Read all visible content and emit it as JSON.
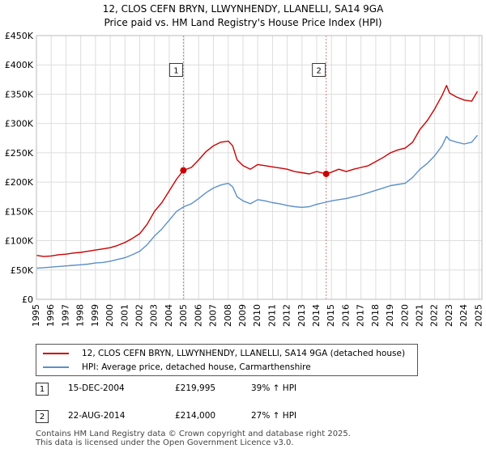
{
  "header": {
    "title_line1": "12, CLOS CEFN BRYN, LLWYNHENDY, LLANELLI, SA14 9GA",
    "title_line2": "Price paid vs. HM Land Registry's House Price Index (HPI)"
  },
  "chart_data": {
    "type": "line",
    "xlim": [
      1995,
      2025.2
    ],
    "ylim": [
      0,
      450000
    ],
    "yticks": [
      0,
      50000,
      100000,
      150000,
      200000,
      250000,
      300000,
      350000,
      400000,
      450000
    ],
    "ytick_labels": [
      "£0",
      "£50K",
      "£100K",
      "£150K",
      "£200K",
      "£250K",
      "£300K",
      "£350K",
      "£400K",
      "£450K"
    ],
    "xticks": [
      1995,
      1996,
      1997,
      1998,
      1999,
      2000,
      2001,
      2002,
      2003,
      2004,
      2005,
      2006,
      2007,
      2008,
      2009,
      2010,
      2011,
      2012,
      2013,
      2014,
      2015,
      2016,
      2017,
      2018,
      2019,
      2020,
      2021,
      2022,
      2023,
      2024,
      2025
    ],
    "grid": true,
    "series": [
      {
        "name": "12, CLOS CEFN BRYN, LLWYNHENDY, LLANELLI, SA14 9GA (detached house)",
        "color": "#cc0000",
        "x": [
          1995.0,
          1995.5,
          1996.0,
          1996.5,
          1997.0,
          1997.5,
          1998.0,
          1998.5,
          1999.0,
          1999.5,
          2000.0,
          2000.5,
          2001.0,
          2001.5,
          2002.0,
          2002.5,
          2003.0,
          2003.5,
          2004.0,
          2004.5,
          2004.96,
          2005.5,
          2006.0,
          2006.5,
          2007.0,
          2007.5,
          2008.0,
          2008.3,
          2008.6,
          2009.0,
          2009.5,
          2010.0,
          2010.5,
          2011.0,
          2011.5,
          2012.0,
          2012.5,
          2013.0,
          2013.5,
          2014.0,
          2014.64,
          2015.0,
          2015.5,
          2016.0,
          2016.5,
          2017.0,
          2017.5,
          2018.0,
          2018.5,
          2019.0,
          2019.5,
          2020.0,
          2020.5,
          2021.0,
          2021.5,
          2022.0,
          2022.5,
          2022.8,
          2023.0,
          2023.5,
          2024.0,
          2024.5,
          2024.9
        ],
        "values": [
          75000,
          73000,
          74000,
          76000,
          77000,
          79000,
          80000,
          82000,
          84000,
          86000,
          88000,
          92000,
          97000,
          104000,
          112000,
          128000,
          150000,
          165000,
          185000,
          205000,
          219995,
          225000,
          238000,
          252000,
          262000,
          268000,
          270000,
          262000,
          238000,
          228000,
          222000,
          230000,
          228000,
          226000,
          224000,
          222000,
          218000,
          216000,
          214000,
          218000,
          214000,
          217000,
          222000,
          218000,
          222000,
          225000,
          228000,
          235000,
          242000,
          250000,
          255000,
          258000,
          268000,
          290000,
          305000,
          325000,
          348000,
          365000,
          352000,
          345000,
          340000,
          338000,
          355000
        ]
      },
      {
        "name": "HPI: Average price, detached house, Carmarthenshire",
        "color": "#5b8fc9",
        "x": [
          1995.0,
          1995.5,
          1996.0,
          1996.5,
          1997.0,
          1997.5,
          1998.0,
          1998.5,
          1999.0,
          1999.5,
          2000.0,
          2000.5,
          2001.0,
          2001.5,
          2002.0,
          2002.5,
          2003.0,
          2003.5,
          2004.0,
          2004.5,
          2005.0,
          2005.5,
          2006.0,
          2006.5,
          2007.0,
          2007.5,
          2008.0,
          2008.3,
          2008.6,
          2009.0,
          2009.5,
          2010.0,
          2010.5,
          2011.0,
          2011.5,
          2012.0,
          2012.5,
          2013.0,
          2013.5,
          2014.0,
          2014.5,
          2015.0,
          2015.5,
          2016.0,
          2016.5,
          2017.0,
          2017.5,
          2018.0,
          2018.5,
          2019.0,
          2019.5,
          2020.0,
          2020.5,
          2021.0,
          2021.5,
          2022.0,
          2022.5,
          2022.8,
          2023.0,
          2023.5,
          2024.0,
          2024.5,
          2024.9
        ],
        "values": [
          53000,
          54000,
          55000,
          56000,
          57000,
          58000,
          59000,
          60000,
          62000,
          63000,
          65000,
          68000,
          71000,
          76000,
          82000,
          93000,
          108000,
          120000,
          135000,
          150000,
          158000,
          163000,
          172000,
          182000,
          190000,
          195000,
          198000,
          192000,
          175000,
          168000,
          163000,
          170000,
          168000,
          165000,
          163000,
          160000,
          158000,
          157000,
          158000,
          162000,
          165000,
          168000,
          170000,
          172000,
          175000,
          178000,
          182000,
          186000,
          190000,
          194000,
          196000,
          198000,
          208000,
          222000,
          232000,
          245000,
          262000,
          278000,
          272000,
          268000,
          265000,
          268000,
          280000
        ]
      }
    ],
    "sales": [
      {
        "id": "1",
        "x": 2004.96,
        "value": 219995,
        "date": "15-DEC-2004",
        "price": "£219,995",
        "hpi": "39% ↑ HPI"
      },
      {
        "id": "2",
        "x": 2014.64,
        "value": 214000,
        "date": "22-AUG-2014",
        "price": "£214,000",
        "hpi": "27% ↑ HPI"
      }
    ],
    "marker_label_value": 390000,
    "legend_position": "below"
  },
  "legend": {
    "items": [
      {
        "label": "12, CLOS CEFN BRYN, LLWYNHENDY, LLANELLI, SA14 9GA (detached house)",
        "color": "#cc0000"
      },
      {
        "label": "HPI: Average price, detached house, Carmarthenshire",
        "color": "#5b8fc9"
      }
    ]
  },
  "footer": {
    "line1": "Contains HM Land Registry data © Crown copyright and database right 2025.",
    "line2": "This data is licensed under the Open Government Licence v3.0."
  }
}
